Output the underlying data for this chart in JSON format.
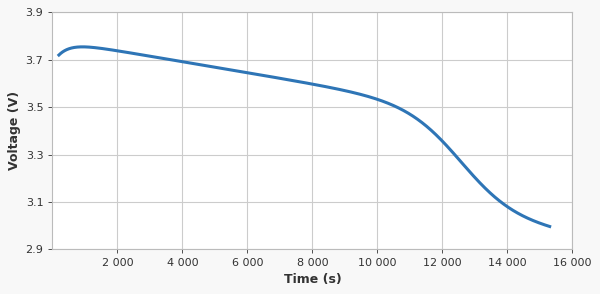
{
  "xlabel": "Time (s)",
  "ylabel": "Voltage (V)",
  "xlim": [
    0,
    16000
  ],
  "ylim": [
    2.9,
    3.9
  ],
  "xticks": [
    2000,
    4000,
    6000,
    8000,
    10000,
    12000,
    14000,
    16000
  ],
  "yticks": [
    2.9,
    3.1,
    3.3,
    3.5,
    3.7,
    3.9
  ],
  "line_color": "#2e75b6",
  "line_width": 2.2,
  "background_color": "#f8f8f8",
  "plot_bg_color": "#ffffff",
  "grid_color": "#cccccc",
  "curve_start_x": 200,
  "curve_start_v": 3.78,
  "curve_end_x": 15300,
  "curve_end_v": 2.965,
  "xlabel_fontsize": 9,
  "ylabel_fontsize": 9,
  "tick_fontsize": 8
}
